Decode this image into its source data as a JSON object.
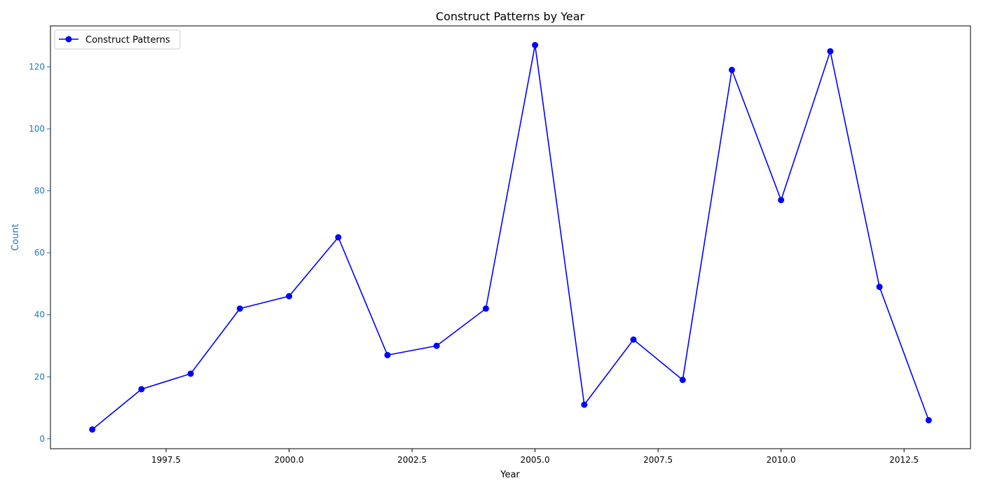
{
  "chart_data": {
    "type": "line",
    "title": "Construct Patterns by Year",
    "xlabel": "Year",
    "ylabel": "Count",
    "xlim": [
      1995.15,
      2013.85
    ],
    "ylim": [
      -3.2,
      133.2
    ],
    "x_ticks": [
      1997.5,
      2000.0,
      2002.5,
      2005.0,
      2007.5,
      2010.0,
      2012.5
    ],
    "x_tick_labels": [
      "1997.5",
      "2000.0",
      "2002.5",
      "2005.0",
      "2007.5",
      "2010.0",
      "2012.5"
    ],
    "y_ticks": [
      0,
      20,
      40,
      60,
      80,
      100,
      120
    ],
    "y_tick_labels": [
      "0",
      "20",
      "40",
      "60",
      "80",
      "100",
      "120"
    ],
    "grid": false,
    "legend_position": "upper-left",
    "y_axis_color": "#1f77b4",
    "series": [
      {
        "name": "Construct Patterns",
        "color": "#0000ff",
        "marker": "circle",
        "x": [
          1996,
          1997,
          1998,
          1999,
          2000,
          2001,
          2002,
          2003,
          2004,
          2005,
          2006,
          2007,
          2008,
          2009,
          2010,
          2011,
          2012,
          2013
        ],
        "y": [
          3,
          16,
          21,
          42,
          46,
          65,
          27,
          30,
          42,
          127,
          11,
          32,
          19,
          119,
          77,
          125,
          49,
          6
        ]
      }
    ]
  }
}
